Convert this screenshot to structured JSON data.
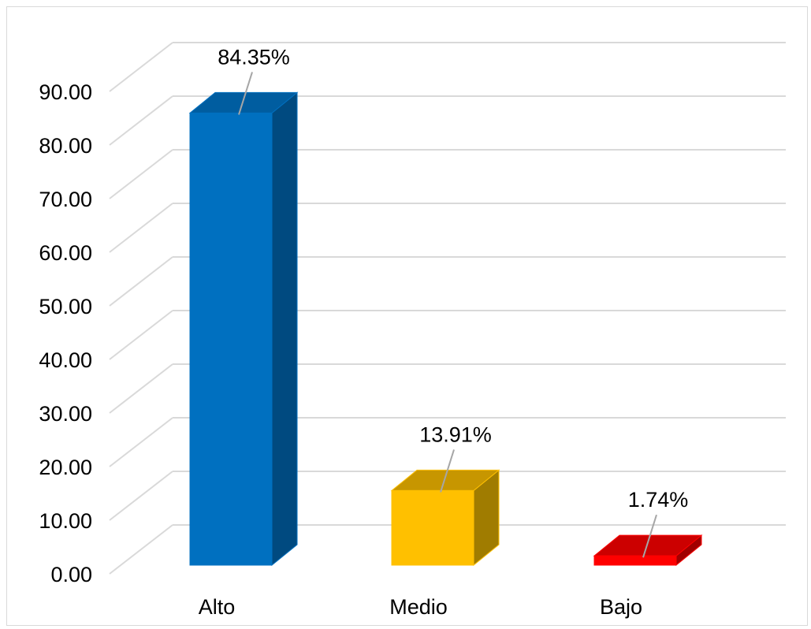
{
  "chart_data": {
    "type": "bar",
    "categories": [
      "Alto",
      "Medio",
      "Bajo"
    ],
    "values": [
      84.35,
      13.91,
      1.74
    ],
    "data_labels": [
      "84.35%",
      "13.91%",
      "1.74%"
    ],
    "ylim": [
      0,
      90
    ],
    "y_ticks": [
      "0.00",
      "10.00",
      "20.00",
      "30.00",
      "40.00",
      "50.00",
      "60.00",
      "70.00",
      "80.00",
      "90.00"
    ],
    "grid": true,
    "style": "3d-column",
    "colors": [
      {
        "front": "#0070c0",
        "top": "#005da0",
        "side": "#004a80"
      },
      {
        "front": "#ffc000",
        "top": "#c79600",
        "side": "#a07c00"
      },
      {
        "front": "#ff0000",
        "top": "#cc0000",
        "side": "#a00000"
      }
    ]
  }
}
